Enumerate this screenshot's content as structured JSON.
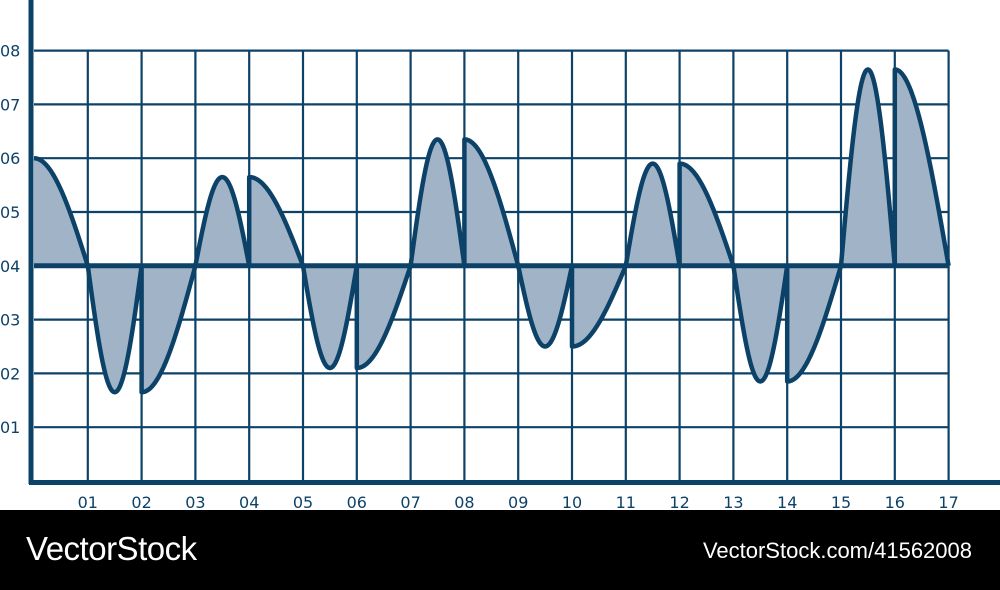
{
  "chart_data": {
    "type": "area",
    "title": "",
    "xlabel": "",
    "ylabel": "",
    "x_ticks": [
      "01",
      "02",
      "03",
      "04",
      "05",
      "06",
      "07",
      "08",
      "09",
      "10",
      "11",
      "12",
      "13",
      "14",
      "15",
      "16",
      "17"
    ],
    "y_ticks": [
      "01",
      "02",
      "03",
      "04",
      "05",
      "06",
      "07",
      "08"
    ],
    "xlim": [
      0,
      17
    ],
    "ylim": [
      0,
      8
    ],
    "baseline": 4,
    "grid": true,
    "series": [
      {
        "x": [
          0,
          1,
          2,
          3,
          4,
          5,
          6,
          7,
          8,
          9,
          10,
          11,
          12,
          13,
          14,
          15,
          16,
          17
        ],
        "values": [
          6.0,
          4.0,
          1.65,
          4.0,
          5.65,
          4.0,
          2.1,
          4.0,
          6.35,
          4.0,
          2.5,
          4.0,
          5.9,
          4.0,
          1.85,
          4.0,
          7.65,
          4.0
        ]
      }
    ],
    "colors": {
      "line": "#0d4268",
      "fill": "#a1b4c7",
      "grid": "#0d4268",
      "text": "#0d4268"
    }
  },
  "footer": {
    "brand": "VectorStock",
    "stock_id": "VectorStock.com/41562008"
  }
}
